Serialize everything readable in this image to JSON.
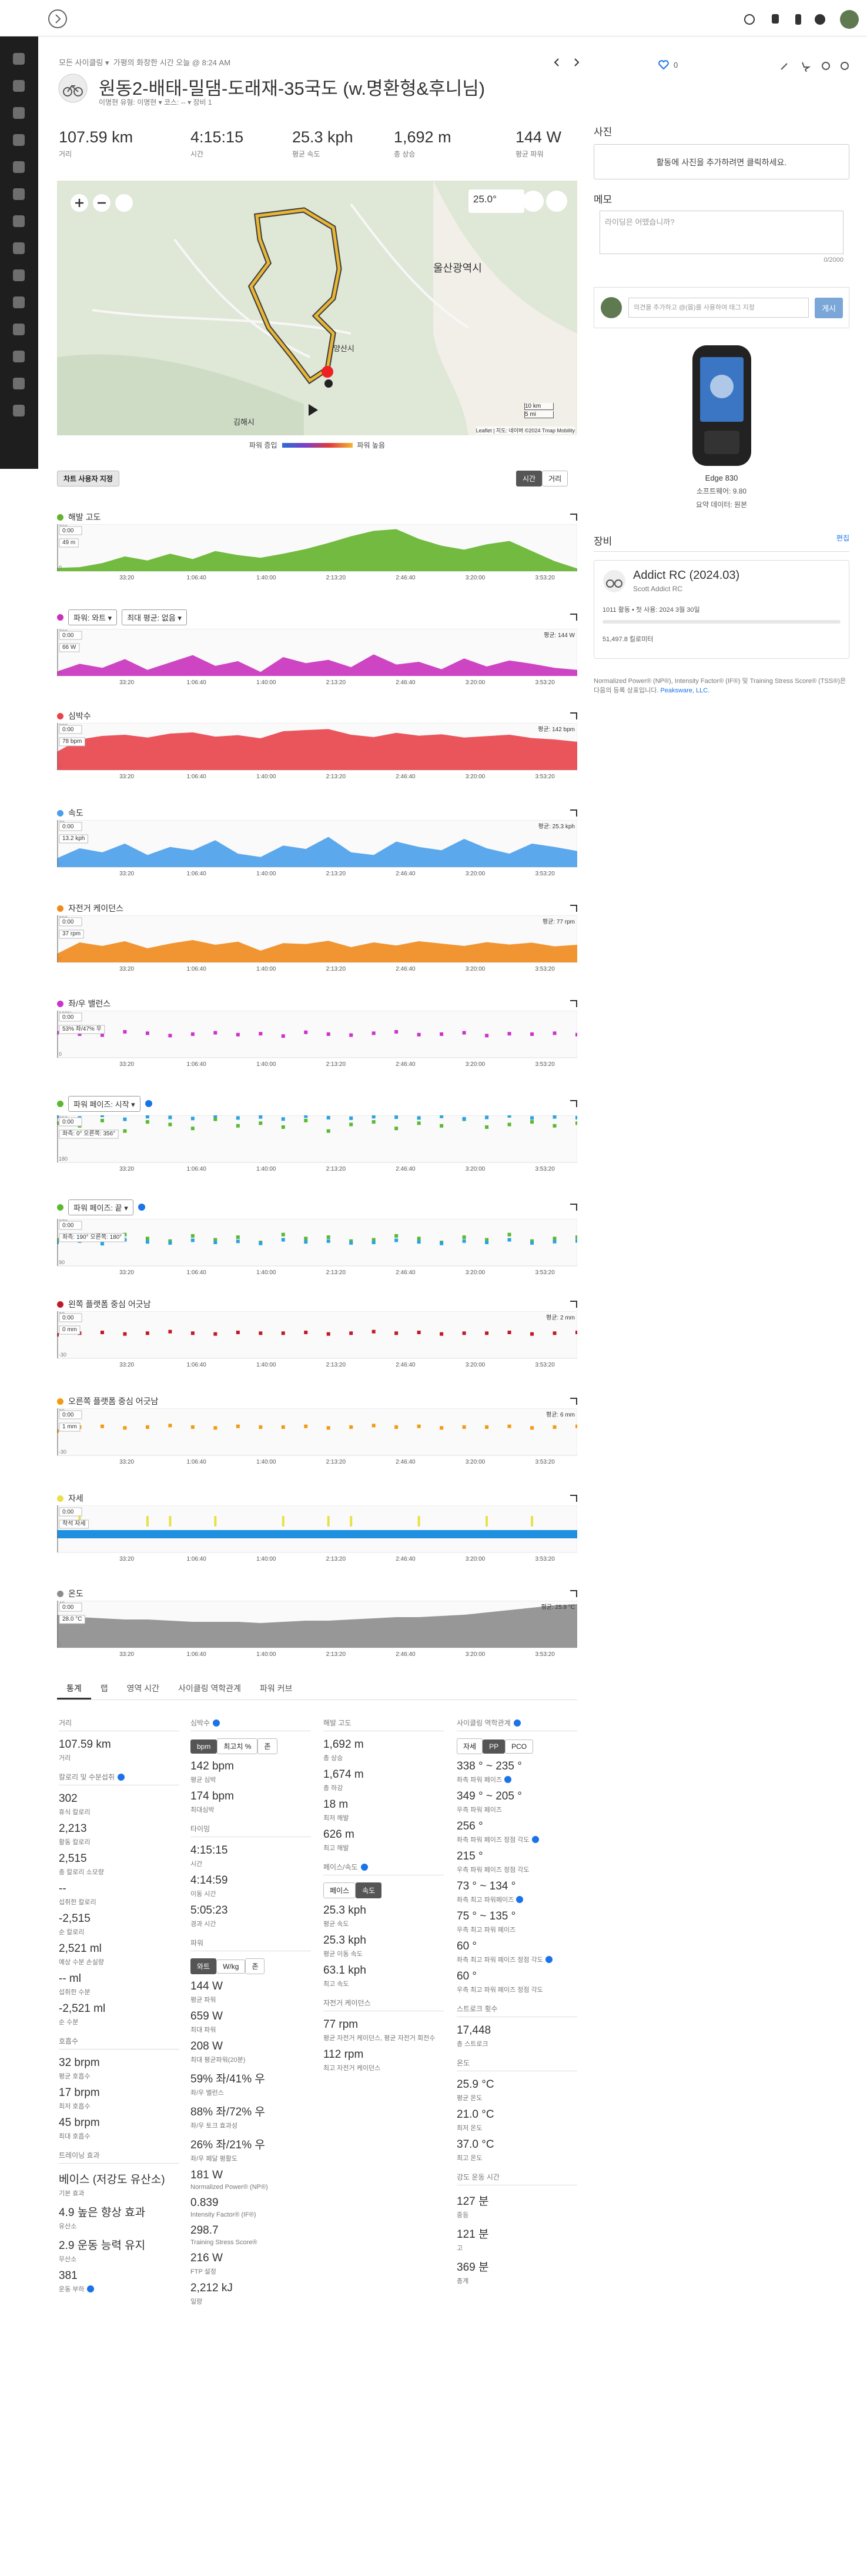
{
  "header": {
    "breadcrumb": "모든 사이클링 ▾",
    "info": "가평의 화창한 시간  오늘 @ 8:24 AM",
    "title": "원동2-배태-밀댐-도래재-35국도 (w.명환형&후니님)",
    "subtitle": "이명현 유형: 이명현 ▾   코스: -- ▾   장비 1",
    "likes": "0"
  },
  "summary": [
    {
      "value": "107.59 km",
      "label": "거리"
    },
    {
      "value": "4:15:15",
      "label": "시간"
    },
    {
      "value": "25.3 kph",
      "label": "평균 속도"
    },
    {
      "value": "1,692 m",
      "label": "총 상승"
    },
    {
      "value": "144 W",
      "label": "평균 파워"
    }
  ],
  "map": {
    "places": [
      "울산광역시",
      "양산시",
      "김해시"
    ],
    "temperature": "25.0°",
    "scale": [
      "10 km",
      "5 mi"
    ],
    "attribution": "Leaflet | 지도: 네이버 ©2024 Tmap Mobility",
    "legend_low": "파워 증입",
    "legend_high": "파워 높음"
  },
  "chart_controls": {
    "customize": "차트 사용자 지정",
    "time": "시간",
    "distance": "거리"
  },
  "time_ticks": [
    "33:20",
    "1:06:40",
    "1:40:00",
    "2:13:20",
    "2:46:40",
    "3:20:00",
    "3:53:20"
  ],
  "charts": [
    {
      "title": "해발 고도",
      "style": "area",
      "hover_time": "0:00",
      "hover_value": "49 m",
      "ylim": [
        0,
        700
      ],
      "yticks": [
        0,
        700
      ],
      "series": [
        {
          "color": "#63b22b",
          "values": [
            49,
            60,
            120,
            220,
            160,
            260,
            180,
            300,
            240,
            200,
            260,
            330,
            420,
            520,
            600,
            626,
            480,
            380,
            320,
            400,
            450,
            300,
            150,
            40
          ]
        }
      ]
    },
    {
      "title": "",
      "dropdowns": [
        "파워: 와트 ▾",
        "최대 평균: 없음 ▾"
      ],
      "style": "area",
      "hover_time": "0:00",
      "hover_value": "66 W",
      "average": "평균: 144 W",
      "ylim": [
        0,
        700
      ],
      "yticks": [
        0,
        700
      ],
      "series": [
        {
          "color": "#c931bc",
          "values": [
            66,
            180,
            120,
            250,
            90,
            200,
            310,
            150,
            220,
            60,
            280,
            190,
            240,
            130,
            320,
            170,
            210,
            100,
            260,
            140,
            230,
            180,
            120,
            90
          ]
        }
      ]
    },
    {
      "title": "심박수",
      "style": "area",
      "hover_time": "0:00",
      "hover_value": "78 bpm",
      "average": "평균: 142 bpm",
      "ylim": [
        0,
        200
      ],
      "yticks": [
        0,
        200
      ],
      "series": [
        {
          "color": "#e8424a",
          "values": [
            78,
            130,
            145,
            150,
            138,
            155,
            160,
            142,
            148,
            135,
            165,
            170,
            174,
            150,
            140,
            158,
            146,
            152,
            138,
            144,
            150,
            136,
            130,
            120
          ]
        }
      ]
    },
    {
      "title": "속도",
      "style": "area",
      "hover_time": "0:00",
      "hover_value": "13.2 kph",
      "average": "평균: 25.3 kph",
      "ylim": [
        0,
        70
      ],
      "yticks": [
        0,
        70
      ],
      "series": [
        {
          "color": "#4a9eea",
          "values": [
            13.2,
            28,
            22,
            35,
            18,
            30,
            25,
            40,
            20,
            15,
            32,
            27,
            45,
            22,
            18,
            38,
            30,
            25,
            42,
            28,
            20,
            35,
            30,
            24
          ]
        }
      ]
    },
    {
      "title": "자전거 케이던스",
      "style": "area",
      "hover_time": "0:00",
      "hover_value": "37 rpm",
      "average": "평균: 77 rpm",
      "ylim": [
        0,
        200
      ],
      "yticks": [
        0,
        200
      ],
      "series": [
        {
          "color": "#f08a1c",
          "values": [
            37,
            85,
            70,
            90,
            60,
            80,
            95,
            75,
            88,
            50,
            82,
            78,
            92,
            65,
            85,
            72,
            90,
            80,
            70,
            86,
            76,
            84,
            68,
            75
          ]
        }
      ]
    },
    {
      "title": "좌/우 밸런스",
      "style": "dots",
      "hover_time": "0:00",
      "hover_value": "53% 좌/47% 우",
      "ylim": [
        0,
        100
      ],
      "yticks": [
        0,
        {
          "value": 100,
          "label": "100%"
        }
      ],
      "series": [
        {
          "color": "#cc33cc",
          "values": [
            53,
            50,
            48,
            55,
            52,
            47,
            50,
            53,
            49,
            51,
            46,
            54,
            50,
            48,
            52,
            55,
            49,
            50,
            53,
            47,
            51,
            50,
            52,
            49
          ]
        }
      ]
    },
    {
      "title": "",
      "dropdowns": [
        "파워 페이즈: 시작 ▾"
      ],
      "info": true,
      "style": "dots",
      "hover_time": "0:00",
      "hover_value": "좌측: 0°  오른쪽: 356°",
      "ylim": [
        180,
        360
      ],
      "yticks": [
        180,
        360
      ],
      "series": [
        {
          "color": "#5cb82f",
          "values": [
            330,
            320,
            340,
            300,
            335,
            325,
            310,
            345,
            320,
            330,
            315,
            340,
            300,
            325,
            335,
            310,
            330,
            320,
            345,
            315,
            325,
            335,
            320,
            330
          ]
        },
        {
          "color": "#2ba3e0",
          "values": [
            356,
            350,
            360,
            345,
            355,
            352,
            348,
            358,
            350,
            354,
            346,
            357,
            351,
            349,
            355,
            353,
            350,
            356,
            347,
            352,
            358,
            350,
            354,
            351
          ]
        }
      ]
    },
    {
      "title": "",
      "dropdowns": [
        "파워 페이즈: 끝 ▾"
      ],
      "info": true,
      "style": "dots",
      "hover_time": "0:00",
      "hover_value": "좌측: 190°  오른쪽: 180°",
      "ylim": [
        90,
        270
      ],
      "yticks": [
        90,
        270
      ],
      "series": [
        {
          "color": "#5cb82f",
          "values": [
            190,
            200,
            180,
            210,
            195,
            185,
            205,
            190,
            200,
            180,
            210,
            195,
            200,
            185,
            190,
            205,
            195,
            180,
            200,
            190,
            210,
            185,
            195,
            200
          ]
        },
        {
          "color": "#2ba3e0",
          "values": [
            180,
            185,
            175,
            190,
            182,
            178,
            188,
            180,
            184,
            176,
            190,
            182,
            185,
            178,
            180,
            188,
            182,
            176,
            185,
            180,
            190,
            178,
            183,
            186
          ]
        }
      ]
    },
    {
      "title": "왼쪽 플랫폼 중심 어긋남",
      "style": "dots",
      "hover_time": "0:00",
      "hover_value": "0 mm",
      "average": "평균: 2 mm",
      "ylim": [
        -30,
        30
      ],
      "yticks": [
        -30,
        30
      ],
      "series": [
        {
          "color": "#c0192a",
          "values": [
            0,
            2,
            3,
            1,
            2,
            4,
            2,
            1,
            3,
            2,
            2,
            3,
            1,
            2,
            4,
            2,
            3,
            1,
            2,
            2,
            3,
            1,
            2,
            3
          ]
        }
      ]
    },
    {
      "title": "오른쪽 플랫폼 중심 어긋남",
      "style": "dots",
      "hover_time": "0:00",
      "hover_value": "1 mm",
      "average": "평균: 6 mm",
      "ylim": [
        -30,
        30
      ],
      "yticks": [
        -30,
        30
      ],
      "series": [
        {
          "color": "#f39a12",
          "values": [
            1,
            6,
            7,
            5,
            6,
            8,
            6,
            5,
            7,
            6,
            6,
            7,
            5,
            6,
            8,
            6,
            7,
            5,
            6,
            6,
            7,
            5,
            6,
            7
          ]
        }
      ]
    },
    {
      "title": "자세",
      "style": "posture",
      "hover_time": "0:00",
      "hover_value": "착석 자세",
      "series": [
        {
          "color": "#e8e04a",
          "values": [
            0,
            1,
            0,
            0,
            1,
            1,
            0,
            1,
            0,
            0,
            1,
            0,
            1,
            1,
            0,
            0,
            1,
            0,
            0,
            1,
            0,
            1,
            0,
            0
          ]
        }
      ]
    },
    {
      "title": "온도",
      "style": "area",
      "hover_time": "0:00",
      "hover_value": "28.0 °C",
      "average": "평균: 25.9 °C",
      "ylim": [
        0,
        40
      ],
      "yticks": [
        0,
        40
      ],
      "series": [
        {
          "color": "#8c8c8c",
          "values": [
            28,
            26,
            25,
            24,
            24,
            23,
            22,
            22,
            22,
            21,
            22,
            23,
            23,
            24,
            25,
            26,
            26,
            27,
            28,
            30,
            32,
            34,
            36,
            37
          ]
        }
      ]
    }
  ],
  "tabs": [
    "통계",
    "랩",
    "영역 시간",
    "사이클링 역학관계",
    "파워 커브"
  ],
  "stats": [
    [
      {
        "title": "거리",
        "items": [
          {
            "value": "107.59 km",
            "label": "거리"
          }
        ]
      },
      {
        "title": "칼로리 및 수분섭취",
        "info": true,
        "items": [
          {
            "value": "302",
            "label": "휴식 칼로리"
          },
          {
            "value": "2,213",
            "label": "활동 칼로리"
          },
          {
            "value": "2,515",
            "label": "총 칼로리 소모량"
          },
          {
            "value": "--",
            "label": "섭취한 칼로리"
          },
          {
            "value": "-2,515",
            "label": "순 칼로리"
          },
          {
            "value": "2,521 ml",
            "label": "예상 수분 손실량"
          },
          {
            "value": "-- ml",
            "label": "섭취한 수분"
          },
          {
            "value": "-2,521 ml",
            "label": "순 수분"
          }
        ]
      },
      {
        "title": "호흡수",
        "items": [
          {
            "value": "32 brpm",
            "label": "평균 호흡수"
          },
          {
            "value": "17 brpm",
            "label": "최저 호흡수"
          },
          {
            "value": "45 brpm",
            "label": "최대 호흡수"
          }
        ]
      },
      {
        "title": "트레이닝 효과",
        "items": [
          {
            "value": "베이스 (저강도 유산소)",
            "label": "기본 효과"
          },
          {
            "value": "4.9 높은 향상 효과",
            "label": "유산소"
          },
          {
            "value": "2.9 운동 능력 유지",
            "label": "무산소"
          },
          {
            "value": "381",
            "label": "운동 부하",
            "info": true
          }
        ]
      }
    ],
    [
      {
        "title": "심박수",
        "info": true,
        "buttons": [
          "bpm",
          "최고치 %",
          "존"
        ],
        "active": 0,
        "items": [
          {
            "value": "142 bpm",
            "label": "평균 심박"
          },
          {
            "value": "174 bpm",
            "label": "최대심박"
          }
        ]
      },
      {
        "title": "타이밍",
        "items": [
          {
            "value": "4:15:15",
            "label": "시간"
          },
          {
            "value": "4:14:59",
            "label": "이동 시간"
          },
          {
            "value": "5:05:23",
            "label": "경과 시간"
          }
        ]
      },
      {
        "title": "파워",
        "buttons": [
          "와트",
          "W/kg",
          "존"
        ],
        "active": 0,
        "items": [
          {
            "value": "144 W",
            "label": "평균 파워"
          },
          {
            "value": "659 W",
            "label": "최대 파워"
          },
          {
            "value": "208 W",
            "label": "최대 평균파워(20분)"
          },
          {
            "value": "59% 좌/41% 우",
            "label": "좌/우 밸런스"
          },
          {
            "value": "88% 좌/72% 우",
            "label": "좌/우 토크 효과성"
          },
          {
            "value": "26% 좌/21% 우",
            "label": "좌/우 페달 평활도"
          },
          {
            "value": "181 W",
            "label": "Normalized Power® (NP®)"
          },
          {
            "value": "0.839",
            "label": "Intensity Factor® (IF®)"
          },
          {
            "value": "298.7",
            "label": "Training Stress Score®"
          },
          {
            "value": "216 W",
            "label": "FTP 설정"
          },
          {
            "value": "2,212 kJ",
            "label": "일량"
          }
        ]
      }
    ],
    [
      {
        "title": "해발 고도",
        "items": [
          {
            "value": "1,692 m",
            "label": "총 상승"
          },
          {
            "value": "1,674 m",
            "label": "총 하강"
          },
          {
            "value": "18 m",
            "label": "최저 해발"
          },
          {
            "value": "626 m",
            "label": "최고 해발"
          }
        ]
      },
      {
        "title": "페이스/속도",
        "info": true,
        "buttons": [
          "페이스",
          "속도"
        ],
        "active": 1,
        "items": [
          {
            "value": "25.3 kph",
            "label": "평균 속도"
          },
          {
            "value": "25.3 kph",
            "label": "평균 이동 속도"
          },
          {
            "value": "63.1 kph",
            "label": "최고 속도"
          }
        ]
      },
      {
        "title": "자전거 케이던스",
        "items": [
          {
            "value": "77 rpm",
            "label": "평균 자전거 케이던스, 평균 자전거 회전수"
          },
          {
            "value": "112 rpm",
            "label": "최고 자전거 케이던스"
          }
        ]
      }
    ],
    [
      {
        "title": "사이클링 역학관계",
        "info": true,
        "buttons": [
          "자세",
          "PP",
          "PCO"
        ],
        "active": 1,
        "items": [
          {
            "value": "338 ° ~ 235 °",
            "label": "좌측 파워 페이즈",
            "info": true
          },
          {
            "value": "349 ° ~ 205 °",
            "label": "우측 파워 페이즈"
          },
          {
            "value": "256 °",
            "label": "좌측 파워 페이즈 정점 각도",
            "info": true
          },
          {
            "value": "215 °",
            "label": "우측 파워 페이즈 정점 각도"
          },
          {
            "value": "73 ° ~ 134 °",
            "label": "좌측 최고 파워페이즈",
            "info": true
          },
          {
            "value": "75 ° ~ 135 °",
            "label": "우측 최고 파워 페이즈"
          },
          {
            "value": "60 °",
            "label": "좌측 최고 파워 페이즈 정점 각도",
            "info": true
          },
          {
            "value": "60 °",
            "label": "우측 최고 파워 페이즈 정점 각도"
          }
        ]
      },
      {
        "title": "스트로크 횟수",
        "items": [
          {
            "value": "17,448",
            "label": "총 스트로크"
          }
        ]
      },
      {
        "title": "온도",
        "items": [
          {
            "value": "25.9 °C",
            "label": "평균 온도"
          },
          {
            "value": "21.0 °C",
            "label": "최저 온도"
          },
          {
            "value": "37.0 °C",
            "label": "최고 온도"
          }
        ]
      },
      {
        "title": "강도 운동 시간",
        "items": [
          {
            "value": "127 분",
            "label": "중등"
          },
          {
            "value": "121 분",
            "label": "고"
          },
          {
            "value": "369 분",
            "label": "총계"
          }
        ]
      }
    ]
  ],
  "side": {
    "photos_title": "사진",
    "photos_prompt": "활동에 사진을 추가하려면 클릭하세요.",
    "notes_title": "메모",
    "notes_placeholder": "라이딩은 어땠습니까?",
    "notes_count": "0/2000",
    "comment_placeholder": "의견을 추가하고 @(몹)를 사용하여 태그 지정",
    "post": "게시",
    "device": "Edge 830",
    "software": "소프트웨어: 9.80",
    "summary_data": "요약 데이터: 원본",
    "gear_title": "장비",
    "edit": "편집",
    "gear_name": "Addict RC (2024.03)",
    "gear_model": "Scott Addict RC",
    "gear_usage": "1011 활동 • 첫 사용: 2024 3월 30일",
    "gear_distance": "51,497.8 킬로미터",
    "trademark": "Normalized Power® (NP®), Intensity Factor® (IF®) 및 Training Stress Score® (TSS®)은 다음의 등록 상표입니다. ",
    "trademark_owner": "Peaksware, LLC."
  }
}
